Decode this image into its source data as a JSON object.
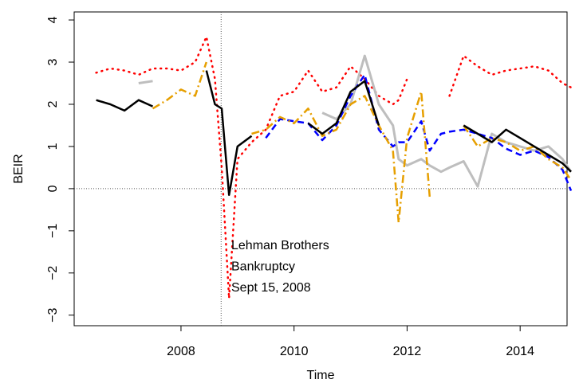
{
  "chart_data": {
    "type": "line",
    "x_label": "Time",
    "y_label": "BEIR",
    "annotations": [
      "Lehman Brothers",
      "Bankruptcy",
      "Sept 15, 2008"
    ],
    "reference_lines": {
      "x": 2008.71,
      "y": 0
    },
    "xlim": [
      2006.11,
      2014.83
    ],
    "ylim": [
      -3.25,
      4.19
    ],
    "xticks": [
      2008,
      2010,
      2012,
      2014
    ],
    "yticks": [
      {
        "value": -3,
        "label": "−3"
      },
      {
        "value": -2,
        "label": "−2"
      },
      {
        "value": -1,
        "label": "−1"
      },
      0,
      1,
      2,
      3,
      4
    ],
    "x": [
      2006.5,
      2006.75,
      2007,
      2007.25,
      2007.5,
      2007.75,
      2008,
      2008.25,
      2008.45,
      2008.6,
      2008.72,
      2008.85,
      2009,
      2009.25,
      2009.5,
      2009.75,
      2010,
      2010.25,
      2010.5,
      2010.75,
      2011,
      2011.25,
      2011.5,
      2011.75,
      2011.85,
      2012,
      2012.25,
      2012.4,
      2012.6,
      2012.75,
      2013,
      2013.25,
      2013.5,
      2013.75,
      2014,
      2014.25,
      2014.5,
      2014.75,
      2014.9
    ],
    "series": [
      {
        "color": "#ff0000",
        "dash": "1,6",
        "width": 2.5,
        "values": [
          2.75,
          2.85,
          2.8,
          2.7,
          2.85,
          2.85,
          2.8,
          3.0,
          3.6,
          2.6,
          0.5,
          -2.6,
          0.7,
          1.1,
          1.4,
          2.2,
          2.3,
          2.8,
          2.3,
          2.4,
          2.9,
          2.6,
          2.2,
          2.0,
          2.1,
          2.6,
          null,
          null,
          null,
          2.2,
          3.15,
          2.9,
          2.7,
          2.8,
          2.85,
          2.9,
          2.8,
          2.5,
          2.4
        ]
      },
      {
        "color": "#bebebe",
        "dash": "none",
        "width": 3,
        "values": [
          null,
          null,
          null,
          2.5,
          2.55,
          null,
          null,
          null,
          null,
          null,
          null,
          null,
          null,
          null,
          null,
          null,
          null,
          null,
          1.8,
          1.65,
          2.0,
          3.15,
          2.0,
          1.5,
          0.7,
          0.55,
          0.7,
          0.55,
          0.4,
          0.5,
          0.65,
          0.05,
          1.3,
          1.1,
          1.0,
          0.9,
          1.0,
          0.7,
          0.4
        ]
      },
      {
        "color": "#0000ff",
        "dash": "8,5",
        "width": 2.5,
        "values": [
          null,
          null,
          null,
          null,
          null,
          null,
          null,
          null,
          null,
          null,
          null,
          null,
          null,
          null,
          1.2,
          1.65,
          1.6,
          1.55,
          1.15,
          1.5,
          2.2,
          2.7,
          1.4,
          1.0,
          1.1,
          1.1,
          1.6,
          0.9,
          1.3,
          1.35,
          1.4,
          1.3,
          1.2,
          0.95,
          0.8,
          0.9,
          0.75,
          0.45,
          -0.05
        ]
      },
      {
        "color": "#e69f00",
        "dash": "10,4,2,4",
        "width": 2.5,
        "values": [
          null,
          null,
          null,
          null,
          1.9,
          2.1,
          2.35,
          2.2,
          3.0,
          null,
          null,
          null,
          null,
          1.3,
          1.4,
          1.7,
          1.55,
          1.9,
          1.25,
          1.4,
          2.0,
          2.2,
          1.5,
          0.9,
          -0.8,
          1.2,
          2.3,
          -0.2,
          null,
          null,
          1.5,
          1.0,
          1.2,
          1.1,
          0.9,
          1.0,
          0.7,
          0.5,
          0.2
        ]
      },
      {
        "color": "#000000",
        "dash": "none",
        "width": 2.5,
        "values": [
          2.1,
          2.0,
          1.85,
          2.1,
          1.95,
          null,
          null,
          null,
          2.8,
          2.0,
          1.9,
          -0.15,
          1.0,
          1.25,
          null,
          null,
          null,
          1.55,
          1.3,
          1.55,
          2.3,
          2.55,
          1.5,
          null,
          null,
          null,
          null,
          null,
          null,
          null,
          1.5,
          1.3,
          1.1,
          1.4,
          1.2,
          1.0,
          0.8,
          0.6,
          0.4
        ]
      }
    ]
  }
}
